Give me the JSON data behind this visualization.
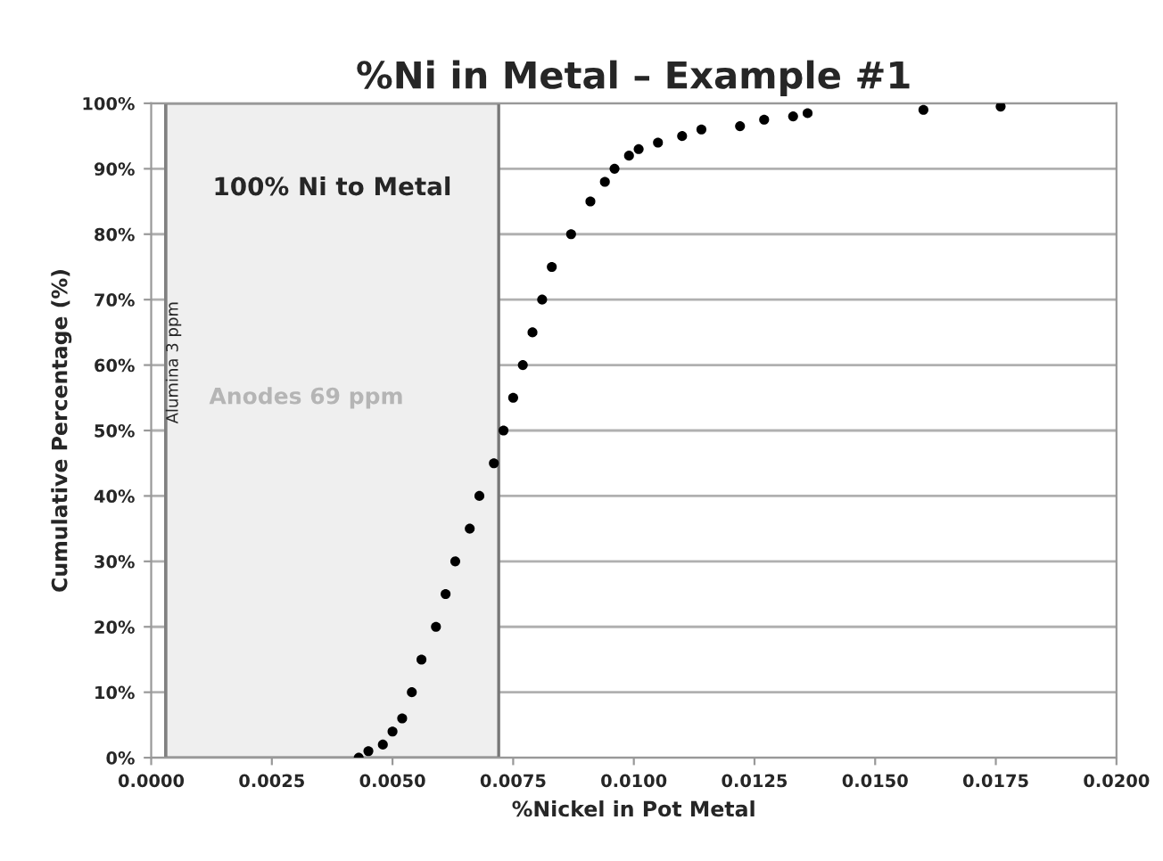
{
  "chart_data": {
    "type": "scatter",
    "title": "%Ni in Metal – Example #1",
    "xlabel": "%Nickel in Pot Metal",
    "ylabel": "Cumulative Percentage (%)",
    "x": [
      0.0043,
      0.0045,
      0.0048,
      0.005,
      0.0052,
      0.0054,
      0.0056,
      0.0059,
      0.0061,
      0.0063,
      0.0066,
      0.0068,
      0.0071,
      0.0073,
      0.0075,
      0.0077,
      0.0079,
      0.0081,
      0.0083,
      0.0087,
      0.0091,
      0.0094,
      0.0096,
      0.0099,
      0.0101,
      0.0105,
      0.011,
      0.0114,
      0.0122,
      0.0127,
      0.0133,
      0.0136,
      0.016,
      0.0176
    ],
    "series": [
      {
        "color": "#000000",
        "values": [
          0,
          1,
          2,
          4,
          6,
          10,
          15,
          20,
          25,
          30,
          35,
          40,
          45,
          50,
          55,
          60,
          65,
          70,
          75,
          80,
          85,
          88,
          90,
          92,
          93,
          94,
          95,
          96,
          96.5,
          97.5,
          98,
          98.5,
          99,
          99.5
        ]
      }
    ],
    "xlim": [
      0,
      0.02
    ],
    "xticks": [
      {
        "value": 0,
        "label": "0.0000"
      },
      {
        "value": 0.0025,
        "label": "0.0025"
      },
      {
        "value": 0.005,
        "label": "0.0050"
      },
      {
        "value": 0.0075,
        "label": "0.0075"
      },
      {
        "value": 0.01,
        "label": "0.0100"
      },
      {
        "value": 0.0125,
        "label": "0.0125"
      },
      {
        "value": 0.015,
        "label": "0.0150"
      },
      {
        "value": 0.0175,
        "label": "0.0175"
      },
      {
        "value": 0.02,
        "label": "0.0200"
      }
    ],
    "ylim": [
      0,
      100
    ],
    "yticks": [
      {
        "value": 0,
        "label": "0%"
      },
      {
        "value": 10,
        "label": "10%"
      },
      {
        "value": 20,
        "label": "20%"
      },
      {
        "value": 30,
        "label": "30%"
      },
      {
        "value": 40,
        "label": "40%"
      },
      {
        "value": 50,
        "label": "50%"
      },
      {
        "value": 60,
        "label": "60%"
      },
      {
        "value": 70,
        "label": "70%"
      },
      {
        "value": 80,
        "label": "80%"
      },
      {
        "value": 90,
        "label": "90%"
      },
      {
        "value": 100,
        "label": "100%"
      }
    ],
    "bands": [
      {
        "axis": "x",
        "from": 0.0003,
        "to": 0.0072,
        "label": "100% Ni to Metal",
        "color": "#efefef"
      }
    ],
    "ref_lines": [
      {
        "axis": "x",
        "value": 0.0003,
        "label": "Alumina 3 ppm",
        "color": "#808080"
      }
    ],
    "annotations": [
      "Anodes 69 ppm"
    ],
    "grid": "y",
    "marker": "circle",
    "legend": false
  }
}
